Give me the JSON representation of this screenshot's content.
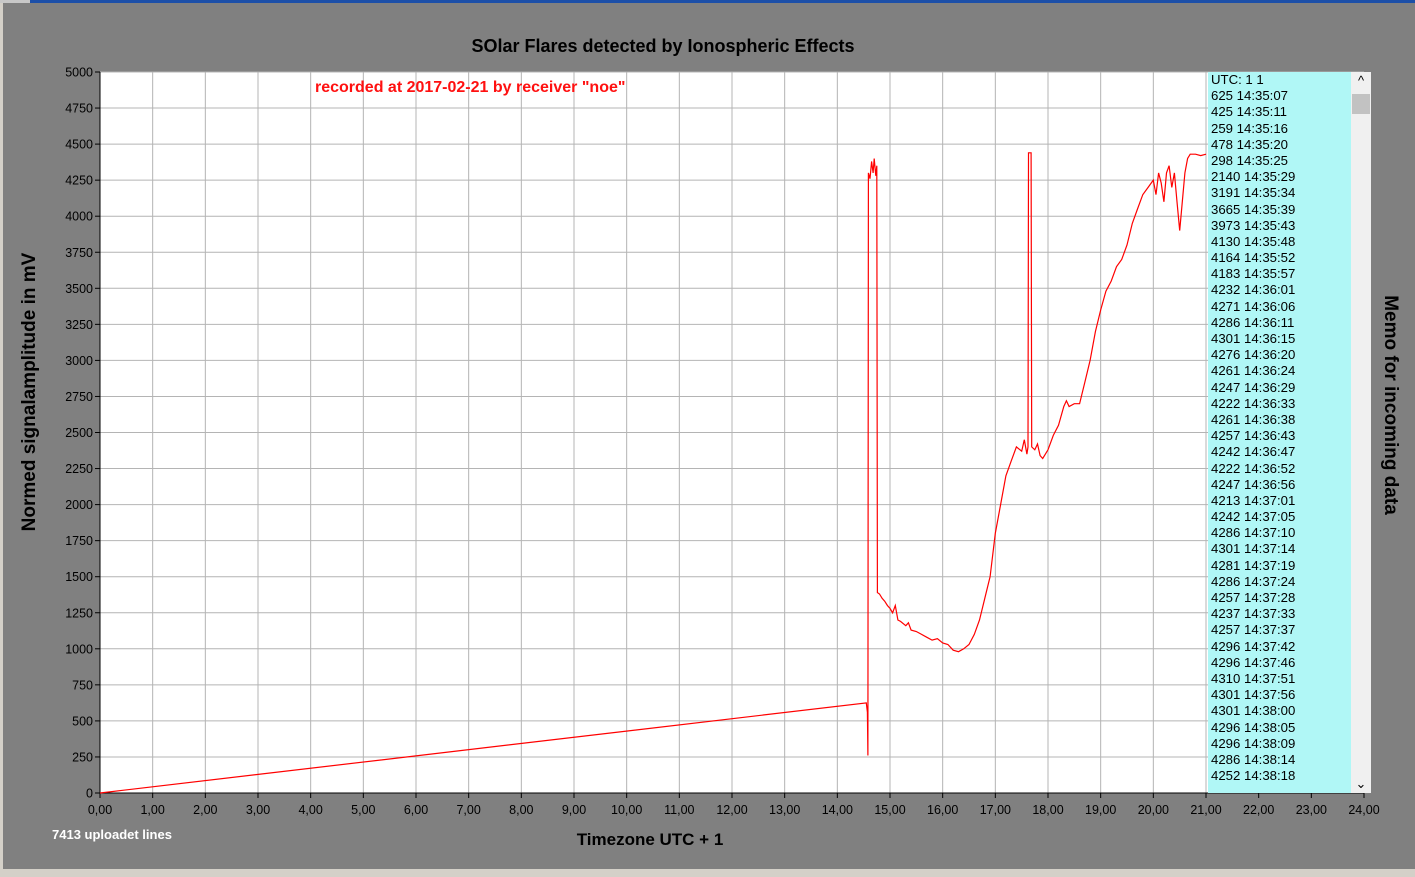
{
  "chart_data": {
    "type": "line",
    "title": "SOlar Flares detected by Ionospheric Effects",
    "annotation": "recorded at 2017-02-21 by receiver \"noe\"",
    "xlabel": "Timezone UTC + 1",
    "ylabel": "Normed signalamplitude in mV",
    "xlim": [
      0,
      24
    ],
    "ylim": [
      0,
      5000
    ],
    "xticks": [
      "0,00",
      "1,00",
      "2,00",
      "3,00",
      "4,00",
      "5,00",
      "6,00",
      "7,00",
      "8,00",
      "9,00",
      "10,00",
      "11,00",
      "12,00",
      "13,00",
      "14,00",
      "15,00",
      "16,00",
      "17,00",
      "18,00",
      "19,00",
      "20,00",
      "21,00",
      "22,00",
      "23,00",
      "24,00"
    ],
    "yticks": [
      "0",
      "250",
      "500",
      "750",
      "1000",
      "1250",
      "1500",
      "1750",
      "2000",
      "2250",
      "2500",
      "2750",
      "3000",
      "3250",
      "3500",
      "3750",
      "4000",
      "4250",
      "4500",
      "4750",
      "5000"
    ],
    "grid": true,
    "series": [
      {
        "color": "#ff0000",
        "points": [
          [
            0,
            0
          ],
          [
            14.55,
            625
          ],
          [
            14.57,
            560
          ],
          [
            14.58,
            260
          ],
          [
            14.59,
            4300
          ],
          [
            14.62,
            4260
          ],
          [
            14.65,
            4380
          ],
          [
            14.68,
            4300
          ],
          [
            14.7,
            4400
          ],
          [
            14.73,
            4280
          ],
          [
            14.75,
            4350
          ],
          [
            14.76,
            1390
          ],
          [
            14.8,
            1380
          ],
          [
            14.85,
            1350
          ],
          [
            14.9,
            1330
          ],
          [
            14.95,
            1300
          ],
          [
            15.0,
            1280
          ],
          [
            15.05,
            1250
          ],
          [
            15.1,
            1300
          ],
          [
            15.15,
            1200
          ],
          [
            15.2,
            1190
          ],
          [
            15.3,
            1160
          ],
          [
            15.35,
            1180
          ],
          [
            15.4,
            1130
          ],
          [
            15.5,
            1120
          ],
          [
            15.6,
            1100
          ],
          [
            15.7,
            1080
          ],
          [
            15.8,
            1060
          ],
          [
            15.9,
            1070
          ],
          [
            16.0,
            1040
          ],
          [
            16.1,
            1030
          ],
          [
            16.2,
            990
          ],
          [
            16.3,
            980
          ],
          [
            16.4,
            1000
          ],
          [
            16.5,
            1030
          ],
          [
            16.6,
            1100
          ],
          [
            16.7,
            1200
          ],
          [
            16.8,
            1350
          ],
          [
            16.9,
            1500
          ],
          [
            17.0,
            1800
          ],
          [
            17.1,
            2000
          ],
          [
            17.2,
            2200
          ],
          [
            17.3,
            2300
          ],
          [
            17.4,
            2400
          ],
          [
            17.5,
            2370
          ],
          [
            17.55,
            2450
          ],
          [
            17.6,
            2350
          ],
          [
            17.62,
            2400
          ],
          [
            17.63,
            4440
          ],
          [
            17.68,
            4440
          ],
          [
            17.69,
            2400
          ],
          [
            17.75,
            2380
          ],
          [
            17.8,
            2420
          ],
          [
            17.85,
            2340
          ],
          [
            17.9,
            2320
          ],
          [
            17.95,
            2350
          ],
          [
            18.0,
            2380
          ],
          [
            18.1,
            2480
          ],
          [
            18.2,
            2550
          ],
          [
            18.3,
            2680
          ],
          [
            18.35,
            2720
          ],
          [
            18.4,
            2680
          ],
          [
            18.5,
            2700
          ],
          [
            18.6,
            2700
          ],
          [
            18.7,
            2850
          ],
          [
            18.8,
            3000
          ],
          [
            18.9,
            3200
          ],
          [
            19.0,
            3350
          ],
          [
            19.1,
            3480
          ],
          [
            19.2,
            3550
          ],
          [
            19.3,
            3650
          ],
          [
            19.4,
            3700
          ],
          [
            19.5,
            3800
          ],
          [
            19.6,
            3950
          ],
          [
            19.7,
            4050
          ],
          [
            19.8,
            4150
          ],
          [
            19.9,
            4200
          ],
          [
            20.0,
            4250
          ],
          [
            20.05,
            4150
          ],
          [
            20.1,
            4300
          ],
          [
            20.15,
            4230
          ],
          [
            20.2,
            4100
          ],
          [
            20.25,
            4300
          ],
          [
            20.3,
            4350
          ],
          [
            20.35,
            4200
          ],
          [
            20.4,
            4300
          ],
          [
            20.45,
            4100
          ],
          [
            20.5,
            3900
          ],
          [
            20.55,
            4100
          ],
          [
            20.6,
            4300
          ],
          [
            20.65,
            4400
          ],
          [
            20.7,
            4430
          ],
          [
            20.8,
            4430
          ],
          [
            20.9,
            4420
          ],
          [
            21.0,
            4430
          ]
        ]
      }
    ]
  },
  "memo": {
    "side_label": "Memo for incoming data",
    "lines": [
      "UTC: 1 1",
      "625 14:35:07",
      "425 14:35:11",
      "259 14:35:16",
      "478 14:35:20",
      "298 14:35:25",
      "2140 14:35:29",
      "3191 14:35:34",
      "3665 14:35:39",
      "3973 14:35:43",
      "4130 14:35:48",
      "4164 14:35:52",
      "4183 14:35:57",
      "4232 14:36:01",
      "4271 14:36:06",
      "4286 14:36:11",
      "4301 14:36:15",
      "4276 14:36:20",
      "4261 14:36:24",
      "4247 14:36:29",
      "4222 14:36:33",
      "4261 14:36:38",
      "4257 14:36:43",
      "4242 14:36:47",
      "4222 14:36:52",
      "4247 14:36:56",
      "4213 14:37:01",
      "4242 14:37:05",
      "4286 14:37:10",
      "4301 14:37:14",
      "4281 14:37:19",
      "4286 14:37:24",
      "4257 14:37:28",
      "4237 14:37:33",
      "4257 14:37:37",
      "4296 14:37:42",
      "4296 14:37:46",
      "4310 14:37:51",
      "4301 14:37:56",
      "4301 14:38:00",
      "4296 14:38:05",
      "4296 14:38:09",
      "4286 14:38:14",
      "4252 14:38:18"
    ],
    "scroll_up_glyph": "^",
    "scroll_down_glyph": "⌄"
  },
  "status": {
    "uploaded_lines": "7413 uploadet lines"
  },
  "colors": {
    "plot_background": "#ffffff",
    "window_background": "#808080",
    "line": "#ff0000",
    "memo_background": "#b0f7f6",
    "annotation": "#ff1010"
  }
}
